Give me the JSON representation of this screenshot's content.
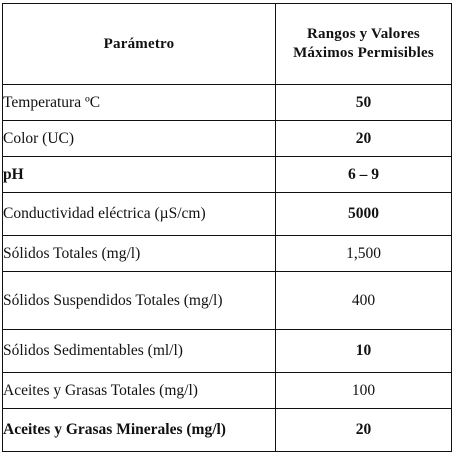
{
  "table": {
    "header": {
      "param": "Parámetro",
      "value_line1": "Rangos y Valores",
      "value_line2": "Máximos Permisibles"
    },
    "rows": [
      {
        "param": "Temperatura ºC",
        "value": "50"
      },
      {
        "param": "Color (UC)",
        "value": "20"
      },
      {
        "param": "pH",
        "value": "6 – 9"
      },
      {
        "param": "Conductividad eléctrica (µS/cm)",
        "value": "5000"
      },
      {
        "param": "Sólidos Totales (mg/l)",
        "value": "1,500"
      },
      {
        "param": "Sólidos Suspendidos Totales (mg/l)",
        "value": "400"
      },
      {
        "param": "Sólidos Sedimentables (ml/l)",
        "value": "10"
      },
      {
        "param": "Aceites y Grasas Totales (mg/l)",
        "value": "100"
      },
      {
        "param": "Aceites y Grasas Minerales (mg/l)",
        "value": "20"
      }
    ]
  }
}
